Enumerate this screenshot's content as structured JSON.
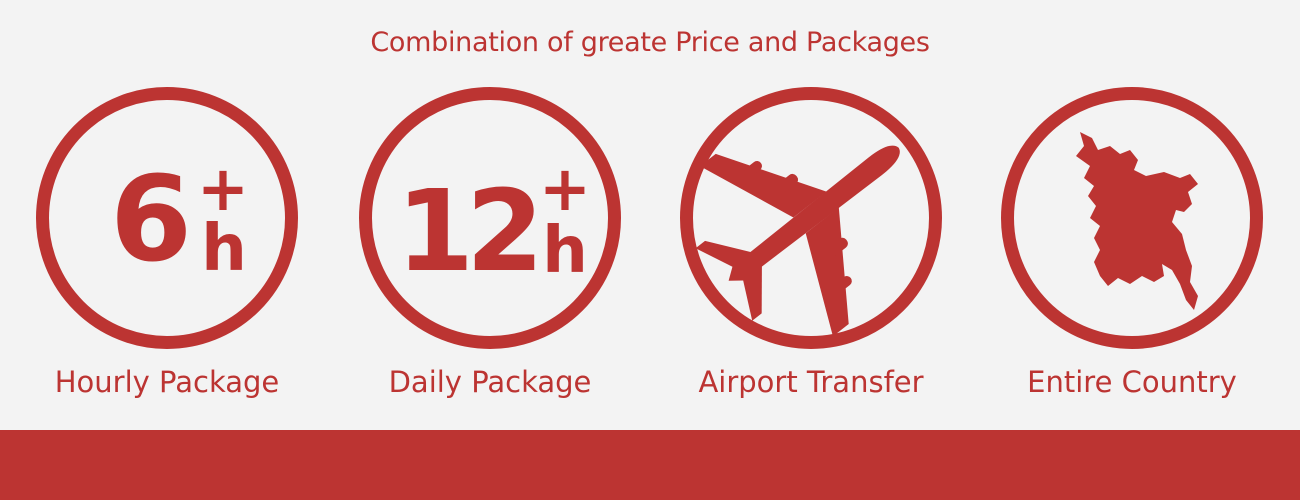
{
  "heading": "Combination of greate Price and Packages",
  "accent_color": "#bc3432",
  "background_color": "#f3f3f3",
  "packages": [
    {
      "icon": "six-hours-plus-icon",
      "number": "6",
      "plus": "+",
      "unit": "h",
      "label": "Hourly Package"
    },
    {
      "icon": "twelve-hours-plus-icon",
      "number": "12",
      "plus": "+",
      "unit": "h",
      "label": "Daily Package"
    },
    {
      "icon": "airplane-icon",
      "label": "Airport Transfer"
    },
    {
      "icon": "country-map-icon",
      "label": "Entire Country"
    }
  ]
}
